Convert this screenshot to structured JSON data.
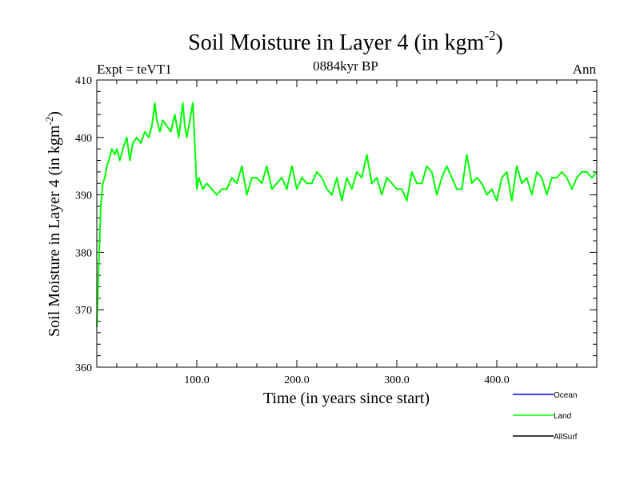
{
  "chart_data": {
    "type": "line",
    "title_main": "Soil Moisture in Layer 4 (in kgm",
    "title_sup": "-2",
    "title_close": ")",
    "subtitle": "0884kyr BP",
    "left_label": "Expt = teVT1",
    "right_label": "Ann",
    "xlabel": "Time (in years since start)",
    "ylabel_main": "Soil Moisture in Layer 4 (in kgm",
    "ylabel_sup": "-2",
    "ylabel_close": ")",
    "xlim": [
      0,
      500
    ],
    "ylim": [
      360,
      410
    ],
    "xticks": [
      100,
      200,
      300,
      400
    ],
    "xtick_labels": [
      "100.0",
      "200.0",
      "300.0",
      "400.0"
    ],
    "yticks": [
      360,
      370,
      380,
      390,
      400,
      410
    ],
    "ytick_labels": [
      "360",
      "370",
      "380",
      "390",
      "400",
      "410"
    ],
    "legend": [
      {
        "name": "Ocean",
        "color": "#0000ff"
      },
      {
        "name": "Land",
        "color": "#00ff00"
      },
      {
        "name": "AllSurf",
        "color": "#000000"
      }
    ],
    "series": [
      {
        "name": "Land",
        "color": "#00ff00",
        "x": [
          0,
          2,
          4,
          6,
          8,
          10,
          12,
          15,
          18,
          20,
          23,
          26,
          30,
          33,
          36,
          40,
          44,
          48,
          52,
          55,
          58,
          60,
          63,
          66,
          70,
          74,
          78,
          82,
          86,
          88,
          90,
          93,
          96,
          98,
          100,
          102,
          104,
          106,
          110,
          115,
          120,
          125,
          130,
          135,
          140,
          145,
          150,
          155,
          160,
          165,
          170,
          175,
          180,
          185,
          190,
          195,
          200,
          205,
          210,
          215,
          220,
          225,
          230,
          235,
          240,
          245,
          250,
          255,
          260,
          265,
          270,
          275,
          280,
          285,
          290,
          295,
          300,
          305,
          310,
          315,
          320,
          325,
          330,
          335,
          340,
          345,
          350,
          355,
          360,
          365,
          370,
          375,
          380,
          385,
          390,
          395,
          400,
          405,
          410,
          415,
          420,
          425,
          430,
          435,
          440,
          445,
          450,
          455,
          460,
          465,
          470,
          475,
          480,
          485,
          490,
          495,
          500
        ],
        "y": [
          367,
          378,
          388,
          392,
          393,
          395,
          396,
          398,
          397,
          398,
          396,
          398,
          400,
          396,
          399,
          400,
          399,
          401,
          400,
          402,
          406,
          403,
          401,
          403,
          402,
          401,
          404,
          400,
          406,
          402,
          400,
          403,
          406,
          399,
          391,
          393,
          392,
          391,
          392,
          391,
          390,
          391,
          391,
          393,
          392,
          395,
          390,
          393,
          393,
          392,
          395,
          391,
          392,
          393,
          391,
          395,
          391,
          393,
          392,
          392,
          394,
          393,
          391,
          390,
          393,
          389,
          393,
          391,
          394,
          393,
          397,
          392,
          393,
          390,
          393,
          392,
          391,
          391,
          389,
          394,
          392,
          392,
          395,
          394,
          390,
          393,
          395,
          393,
          391,
          391,
          397,
          392,
          393,
          392,
          390,
          391,
          389,
          393,
          394,
          389,
          395,
          392,
          393,
          390,
          394,
          393,
          390,
          393,
          393,
          394,
          393,
          391,
          393,
          394,
          394,
          393,
          394
        ]
      }
    ]
  }
}
